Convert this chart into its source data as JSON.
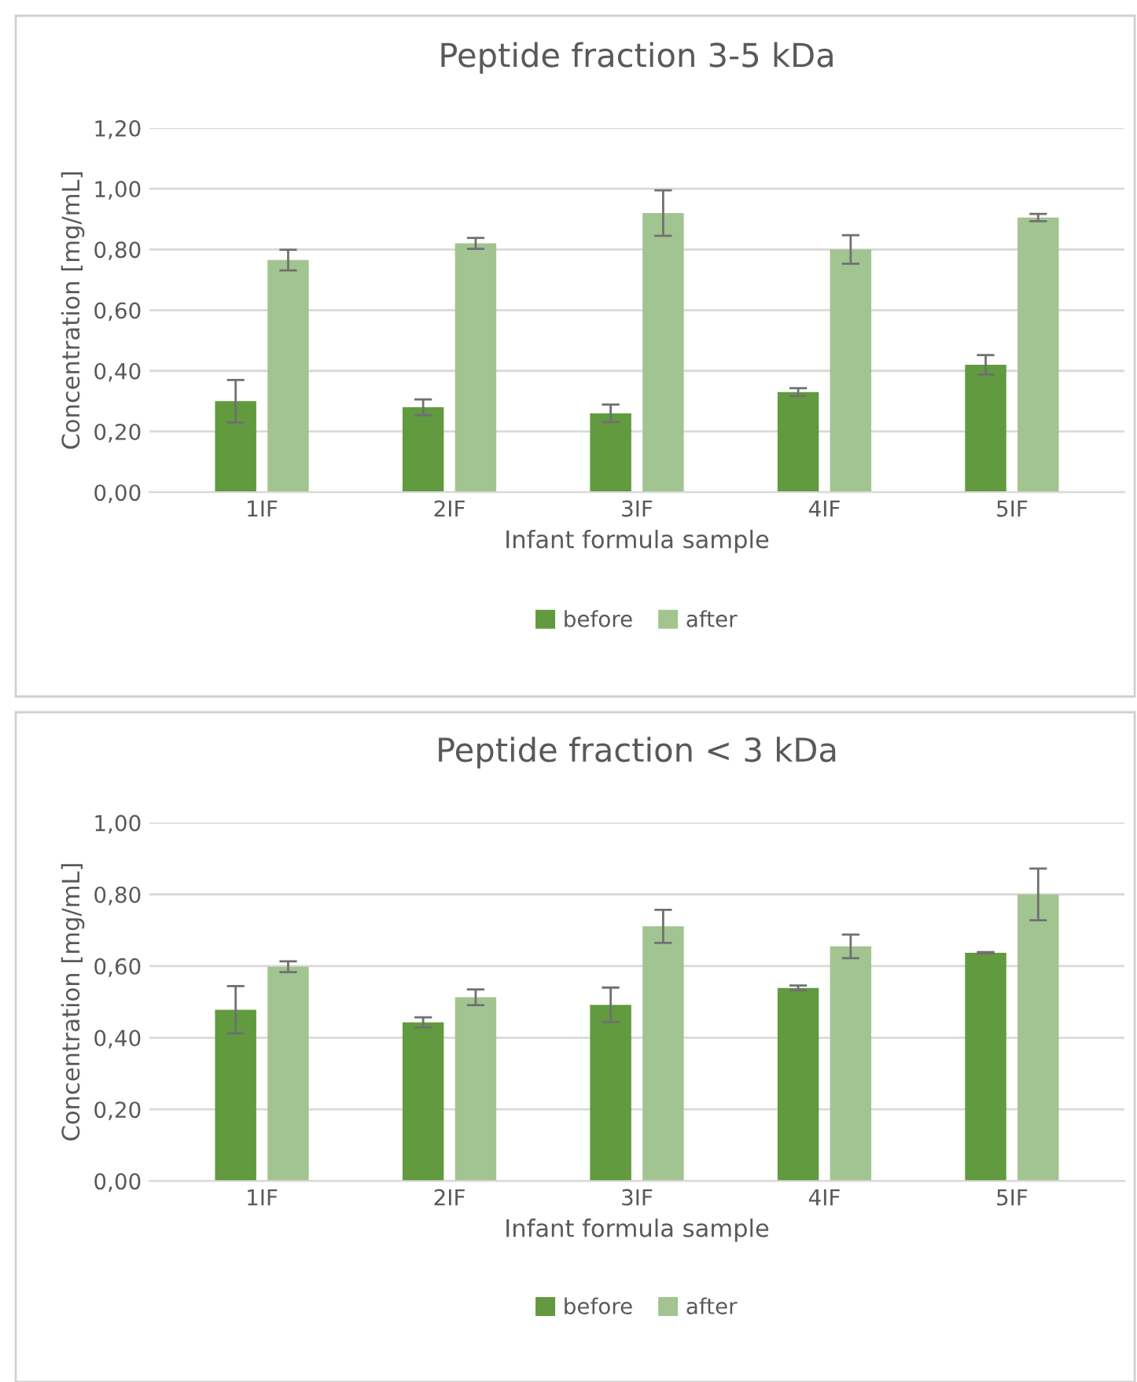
{
  "chart_data": [
    {
      "type": "bar",
      "title": "Peptide fraction 3-5 kDa",
      "xlabel": "Infant formula sample",
      "ylabel": "Concentration [mg/mL]",
      "categories": [
        "1IF",
        "2IF",
        "3IF",
        "4IF",
        "5IF"
      ],
      "series": [
        {
          "name": "before",
          "color": "#629a3f",
          "values": [
            0.3,
            0.28,
            0.26,
            0.33,
            0.42
          ],
          "errors": [
            0.07,
            0.026,
            0.029,
            0.013,
            0.032
          ]
        },
        {
          "name": "after",
          "color": "#a2c490",
          "values": [
            0.765,
            0.82,
            0.92,
            0.8,
            0.905
          ],
          "errors": [
            0.034,
            0.018,
            0.075,
            0.047,
            0.012
          ]
        }
      ],
      "ylim": [
        0,
        1.2
      ],
      "yticks": [
        {
          "value": 0,
          "label": "0,00"
        },
        {
          "value": 0.2,
          "label": "0,20"
        },
        {
          "value": 0.4,
          "label": "0,40"
        },
        {
          "value": 0.6,
          "label": "0,60"
        },
        {
          "value": 0.8,
          "label": "0,80"
        },
        {
          "value": 1.0,
          "label": "1,00"
        },
        {
          "value": 1.2,
          "label": "1,20"
        }
      ],
      "grid": "y",
      "legend": "bottom"
    },
    {
      "type": "bar",
      "title": "Peptide fraction < 3 kDa",
      "xlabel": "Infant formula sample",
      "ylabel": "Concentration [mg/mL]",
      "categories": [
        "1IF",
        "2IF",
        "3IF",
        "4IF",
        "5IF"
      ],
      "series": [
        {
          "name": "before",
          "color": "#629a3f",
          "values": [
            0.478,
            0.443,
            0.492,
            0.539,
            0.637
          ],
          "errors": [
            0.066,
            0.014,
            0.048,
            0.007,
            0.002
          ]
        },
        {
          "name": "after",
          "color": "#a2c490",
          "values": [
            0.598,
            0.513,
            0.711,
            0.655,
            0.8
          ],
          "errors": [
            0.015,
            0.022,
            0.046,
            0.033,
            0.072
          ]
        }
      ],
      "ylim": [
        0,
        1.0
      ],
      "yticks": [
        {
          "value": 0,
          "label": "0,00"
        },
        {
          "value": 0.2,
          "label": "0,20"
        },
        {
          "value": 0.4,
          "label": "0,40"
        },
        {
          "value": 0.6,
          "label": "0,60"
        },
        {
          "value": 0.8,
          "label": "0,80"
        },
        {
          "value": 1.0,
          "label": "1,00"
        }
      ],
      "grid": "y",
      "legend": "bottom"
    }
  ]
}
